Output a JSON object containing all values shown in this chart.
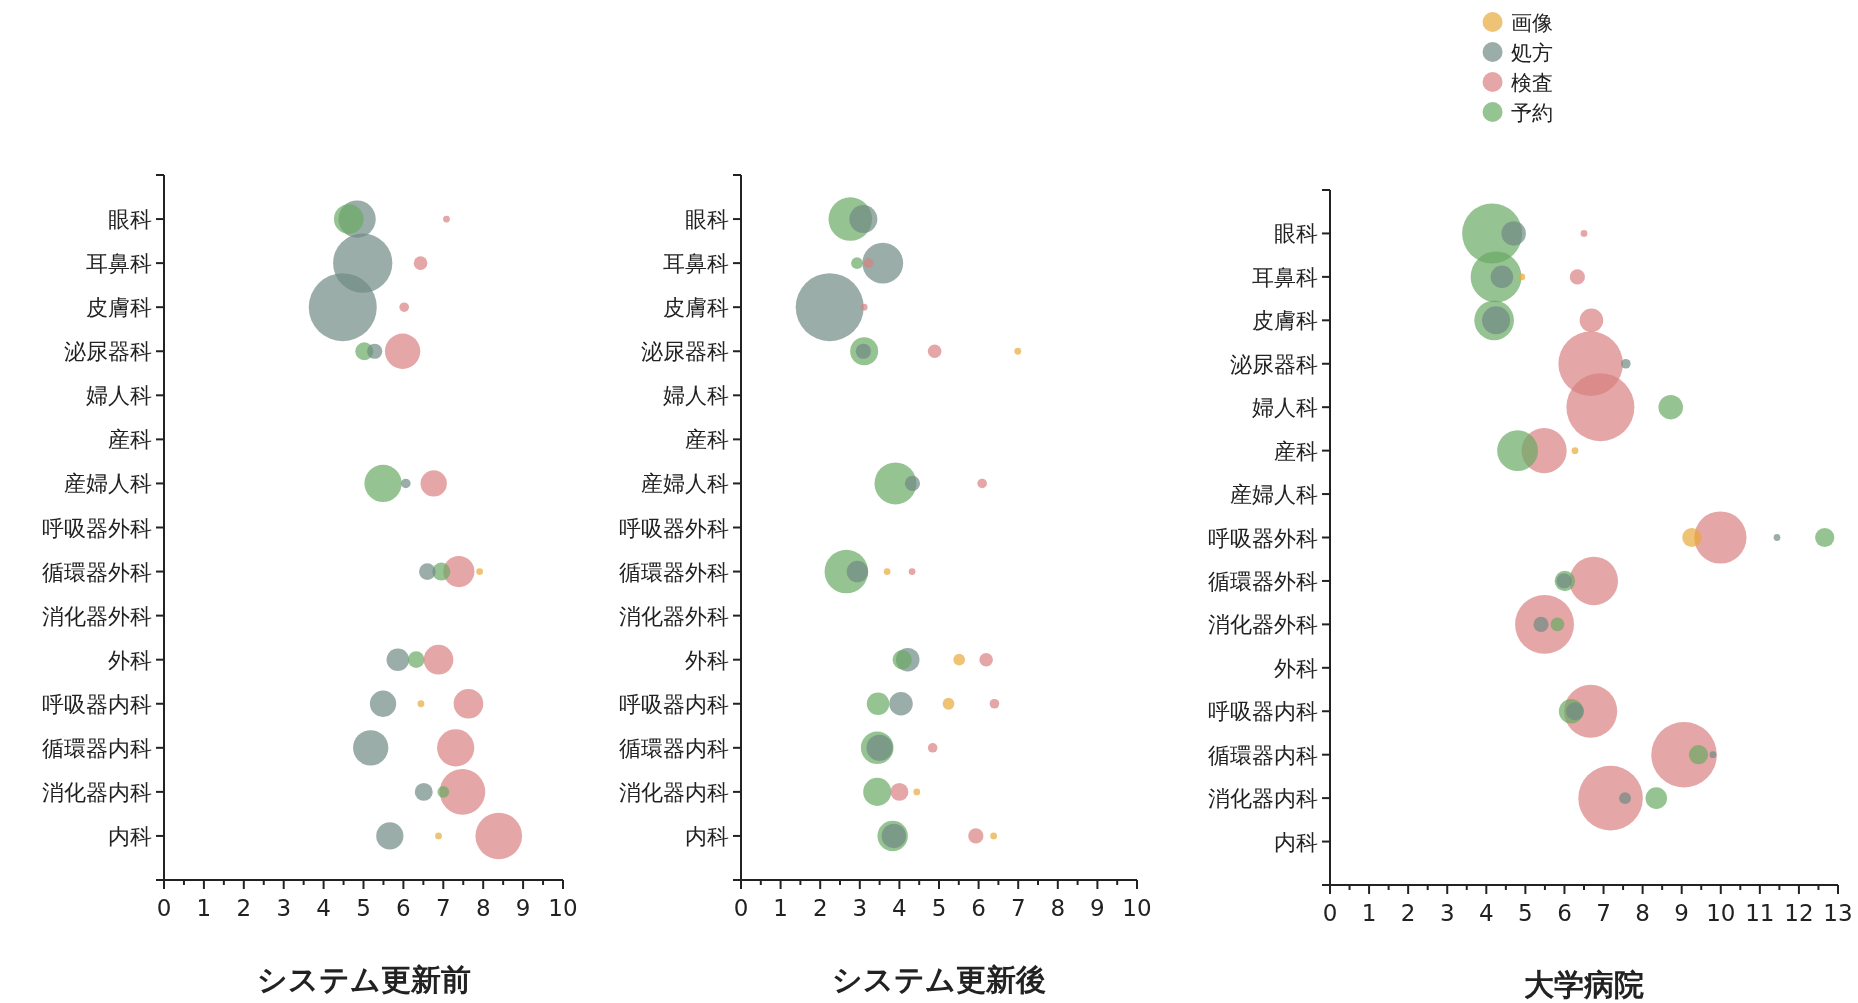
{
  "chart_data": [
    {
      "type": "bubble",
      "orientation": "horizontal",
      "xlabel": "システム更新前",
      "categories": [
        "眼科",
        "耳鼻科",
        "皮膚科",
        "泌尿器科",
        "婦人科",
        "産科",
        "産婦人科",
        "呼吸器外科",
        "循環器外科",
        "消化器外科",
        "外科",
        "呼吸器内科",
        "循環器内科",
        "消化器内科",
        "内科"
      ],
      "xlim": [
        0,
        10
      ],
      "xticks": [
        0,
        {
          "value": 0.5,
          "label": null
        },
        1,
        {
          "value": 1.5,
          "label": null
        },
        2,
        {
          "value": 2.5,
          "label": null
        },
        3,
        {
          "value": 3.5,
          "label": null
        },
        4,
        {
          "value": 4.5,
          "label": null
        },
        5,
        {
          "value": 5.5,
          "label": null
        },
        6,
        {
          "value": 6.5,
          "label": null
        },
        7,
        {
          "value": 7.5,
          "label": null
        },
        8,
        {
          "value": 8.5,
          "label": null
        },
        9,
        {
          "value": 9.5,
          "label": null
        },
        10
      ],
      "series": [
        {
          "color": "#e8a93a",
          "values": [
            null,
            null,
            null,
            null,
            null,
            null,
            null,
            null,
            7.91,
            null,
            null,
            6.44,
            null,
            null,
            6.88
          ],
          "sizes": [
            null,
            null,
            null,
            null,
            null,
            null,
            null,
            null,
            0.01,
            null,
            null,
            0.01,
            null,
            null,
            0.01
          ]
        },
        {
          "color": "#6f8a84",
          "values": [
            4.84,
            4.98,
            4.48,
            5.28,
            null,
            null,
            6.06,
            null,
            6.6,
            null,
            5.86,
            5.49,
            5.18,
            6.51,
            5.66
          ],
          "sizes": [
            0.3,
            0.76,
            1,
            0.05,
            null,
            null,
            0.02,
            null,
            0.06,
            null,
            0.11,
            0.15,
            0.27,
            0.07,
            0.16
          ]
        },
        {
          "color": "#d98080",
          "values": [
            7.08,
            6.43,
            6.02,
            5.98,
            null,
            null,
            6.76,
            null,
            7.39,
            null,
            6.88,
            7.63,
            7.31,
            7.48,
            8.39
          ],
          "sizes": [
            0.01,
            0.04,
            0.02,
            0.27,
            null,
            null,
            0.15,
            null,
            0.21,
            null,
            0.19,
            0.19,
            0.3,
            0.45,
            0.47
          ]
        },
        {
          "color": "#6aaa64",
          "values": [
            4.63,
            null,
            null,
            5.02,
            null,
            null,
            5.49,
            null,
            6.95,
            null,
            6.32,
            null,
            null,
            7.0,
            null
          ],
          "sizes": [
            0.19,
            null,
            null,
            0.07,
            null,
            null,
            0.3,
            null,
            0.07,
            null,
            0.06,
            null,
            null,
            0.03,
            null
          ]
        }
      ]
    },
    {
      "type": "bubble",
      "orientation": "horizontal",
      "xlabel": "システム更新後",
      "categories": [
        "眼科",
        "耳鼻科",
        "皮膚科",
        "泌尿器科",
        "婦人科",
        "産科",
        "産婦人科",
        "呼吸器外科",
        "循環器外科",
        "消化器外科",
        "外科",
        "呼吸器内科",
        "循環器内科",
        "消化器内科",
        "内科"
      ],
      "xlim": [
        0,
        10
      ],
      "xticks": [
        0,
        {
          "value": 0.5,
          "label": null
        },
        1,
        {
          "value": 1.5,
          "label": null
        },
        2,
        {
          "value": 2.5,
          "label": null
        },
        3,
        {
          "value": 3.5,
          "label": null
        },
        4,
        {
          "value": 4.5,
          "label": null
        },
        5,
        {
          "value": 5.5,
          "label": null
        },
        6,
        {
          "value": 6.5,
          "label": null
        },
        7,
        {
          "value": 7.5,
          "label": null
        },
        8,
        {
          "value": 8.5,
          "label": null
        },
        9,
        {
          "value": 9.5,
          "label": null
        },
        10
      ],
      "series": [
        {
          "color": "#e8a93a",
          "values": [
            null,
            null,
            null,
            6.99,
            null,
            null,
            null,
            null,
            3.69,
            null,
            5.51,
            5.24,
            null,
            4.44,
            6.38
          ],
          "sizes": [
            null,
            null,
            null,
            0.01,
            null,
            null,
            null,
            null,
            0.01,
            null,
            0.03,
            0.03,
            null,
            0.01,
            0.01
          ]
        },
        {
          "color": "#6f8a84",
          "values": [
            3.09,
            3.58,
            2.24,
            3.09,
            null,
            null,
            4.33,
            null,
            2.94,
            null,
            4.21,
            4.04,
            3.5,
            null,
            3.86
          ],
          "sizes": [
            0.17,
            0.36,
            1,
            0.05,
            null,
            null,
            0.05,
            null,
            0.1,
            null,
            0.12,
            0.12,
            0.15,
            null,
            0.13
          ]
        },
        {
          "color": "#d98080",
          "values": [
            null,
            3.22,
            3.11,
            4.89,
            null,
            null,
            6.09,
            null,
            4.32,
            null,
            6.19,
            6.4,
            4.84,
            4.0,
            5.93
          ],
          "sizes": [
            null,
            0.02,
            0.01,
            0.04,
            null,
            null,
            0.02,
            null,
            0.01,
            null,
            0.04,
            0.02,
            0.02,
            0.07,
            0.05
          ]
        },
        {
          "color": "#6aaa64",
          "values": [
            2.76,
            2.93,
            null,
            3.11,
            null,
            null,
            3.9,
            null,
            2.66,
            null,
            4.07,
            3.46,
            3.44,
            3.44,
            3.83
          ],
          "sizes": [
            0.41,
            0.03,
            null,
            0.17,
            null,
            null,
            0.38,
            null,
            0.41,
            null,
            0.08,
            0.11,
            0.23,
            0.17,
            0.2
          ]
        }
      ]
    },
    {
      "type": "bubble",
      "orientation": "horizontal",
      "xlabel": "大学病院",
      "legend": "top",
      "categories": [
        "眼科",
        "耳鼻科",
        "皮膚科",
        "泌尿器科",
        "婦人科",
        "産科",
        "産婦人科",
        "呼吸器外科",
        "循環器外科",
        "消化器外科",
        "外科",
        "呼吸器内科",
        "循環器内科",
        "消化器内科",
        "内科"
      ],
      "xlim": [
        0,
        13
      ],
      "xticks": [
        0,
        {
          "value": 0.5,
          "label": null
        },
        1,
        {
          "value": 1.5,
          "label": null
        },
        2,
        {
          "value": 2.5,
          "label": null
        },
        3,
        {
          "value": 3.5,
          "label": null
        },
        4,
        {
          "value": 4.5,
          "label": null
        },
        5,
        {
          "value": 5.5,
          "label": null
        },
        6,
        {
          "value": 6.5,
          "label": null
        },
        7,
        {
          "value": 7.5,
          "label": null
        },
        8,
        {
          "value": 8.5,
          "label": null
        },
        9,
        {
          "value": 9.5,
          "label": null
        },
        10,
        {
          "value": 10.5,
          "label": null
        },
        11,
        {
          "value": 11.5,
          "label": null
        },
        12,
        {
          "value": 12.5,
          "label": null
        },
        13
      ],
      "series": [
        {
          "name": "画像",
          "color": "#e8a93a",
          "values": [
            null,
            4.91,
            null,
            null,
            null,
            6.27,
            null,
            9.26,
            null,
            null,
            null,
            null,
            null,
            null,
            null
          ],
          "sizes": [
            null,
            0.01,
            null,
            null,
            null,
            0.01,
            null,
            0.08,
            null,
            null,
            null,
            null,
            null,
            null,
            null
          ]
        },
        {
          "name": "処方",
          "color": "#6f8a84",
          "values": [
            4.7,
            4.4,
            4.25,
            7.57,
            null,
            null,
            null,
            11.44,
            5.99,
            5.4,
            null,
            6.27,
            9.8,
            7.55,
            null
          ],
          "sizes": [
            0.13,
            0.11,
            0.17,
            0.02,
            null,
            null,
            null,
            0.01,
            0.05,
            0.05,
            null,
            0.07,
            0.01,
            0.03,
            null
          ]
        },
        {
          "name": "検査",
          "color": "#d98080",
          "values": [
            6.5,
            6.33,
            6.69,
            6.67,
            6.92,
            5.48,
            null,
            9.99,
            6.75,
            5.49,
            null,
            6.67,
            9.06,
            7.18,
            null
          ],
          "sizes": [
            0.01,
            0.05,
            0.12,
            0.9,
            1,
            0.44,
            null,
            0.59,
            0.51,
            0.75,
            null,
            0.61,
            0.93,
            0.9,
            null
          ]
        },
        {
          "name": "予約",
          "color": "#6aaa64",
          "values": [
            4.15,
            4.25,
            4.2,
            null,
            8.72,
            4.8,
            null,
            12.66,
            6.01,
            5.82,
            null,
            6.17,
            9.43,
            8.35,
            null
          ],
          "sizes": [
            0.78,
            0.56,
            0.34,
            null,
            0.13,
            0.36,
            null,
            0.08,
            0.09,
            0.04,
            null,
            0.13,
            0.08,
            0.1,
            null
          ]
        }
      ]
    }
  ]
}
